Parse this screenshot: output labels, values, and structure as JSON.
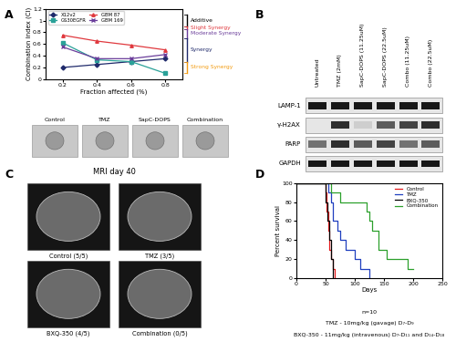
{
  "chart_data": [
    {
      "type": "line",
      "xlabel": "Fraction affected (%)",
      "ylabel": "Combination index (CI)",
      "x": [
        0.2,
        0.4,
        0.6,
        0.8
      ],
      "xlim": [
        0.1,
        0.9
      ],
      "xticks": [
        0.2,
        0.4,
        0.6,
        0.8
      ],
      "ylim": [
        0,
        1.2
      ],
      "yticks": [
        0,
        0.2,
        0.4,
        0.6,
        0.8,
        1,
        1.2
      ],
      "legend": "upper left",
      "series": [
        {
          "name": "X12v2",
          "color": "#1f2a6b",
          "marker": "diamond",
          "values": [
            0.2,
            0.25,
            0.3,
            0.35
          ]
        },
        {
          "name": "GS30EGFR",
          "color": "#2aa198",
          "marker": "square",
          "values": [
            0.62,
            0.33,
            0.3,
            0.1
          ]
        },
        {
          "name": "GBM 87",
          "color": "#e0393e",
          "marker": "triangle",
          "values": [
            0.75,
            0.65,
            0.58,
            0.5
          ]
        },
        {
          "name": "GBM 169",
          "color": "#6a3d9a",
          "marker": "x",
          "values": [
            0.55,
            0.35,
            0.35,
            0.42
          ]
        }
      ],
      "ranges": [
        {
          "label": "Additive",
          "low": 0.9,
          "high": 1.1,
          "color": "#000000"
        },
        {
          "label": "Slight Synergy",
          "low": 0.85,
          "high": 0.9,
          "color": "#e0393e"
        },
        {
          "label": "Moderate Synergy",
          "low": 0.7,
          "high": 0.85,
          "color": "#6a3d9a"
        },
        {
          "label": "Synergy",
          "low": 0.3,
          "high": 0.7,
          "color": "#1f2a6b"
        },
        {
          "label": "Strong Synergy",
          "low": 0.1,
          "high": 0.3,
          "color": "#f39c12"
        }
      ]
    },
    {
      "type": "step",
      "xlabel": "Days",
      "ylabel": "Percent survival",
      "xlim": [
        0,
        250
      ],
      "xticks": [
        0,
        50,
        100,
        150,
        200,
        250
      ],
      "ylim": [
        0,
        100
      ],
      "yticks": [
        0,
        20,
        40,
        60,
        80,
        100
      ],
      "legend": "upper right",
      "series": [
        {
          "name": "Control",
          "color": "#e41a1c",
          "x": [
            0,
            50,
            52,
            55,
            57,
            60,
            62,
            65
          ],
          "values": [
            100,
            90,
            70,
            50,
            30,
            20,
            10,
            0
          ]
        },
        {
          "name": "TMZ",
          "color": "#1f3fbf",
          "x": [
            0,
            55,
            60,
            63,
            70,
            75,
            85,
            100,
            110,
            125
          ],
          "values": [
            100,
            90,
            80,
            60,
            50,
            40,
            30,
            20,
            10,
            0
          ]
        },
        {
          "name": "BXQ-350",
          "color": "#000000",
          "x": [
            0,
            50,
            53,
            57,
            60,
            63
          ],
          "values": [
            100,
            80,
            60,
            40,
            20,
            0
          ]
        },
        {
          "name": "Combination",
          "color": "#2ca02c",
          "x": [
            0,
            60,
            75,
            120,
            125,
            130,
            140,
            155,
            190,
            200
          ],
          "values": [
            100,
            90,
            80,
            70,
            60,
            50,
            30,
            20,
            10,
            10
          ]
        }
      ],
      "annotations": [
        "n=10",
        "TMZ - 10mg/kg (gavage) D₇-D₉",
        "BXQ-350 - 11mg/kg (intravenous) D₇-D₁₁ and D₁₄-D₁₈"
      ]
    }
  ],
  "panel_letters": [
    "A",
    "B",
    "C",
    "D"
  ],
  "micrographs": {
    "labels": [
      "Control",
      "TMZ",
      "SapC-DOPS",
      "Combination"
    ]
  },
  "western_blot": {
    "columns": [
      "Untreated",
      "TMZ (2mM)",
      "SapC-DOPS (11.25uM)",
      "SapC-DOPS (22.5uM)",
      "Combo (11.25uM)",
      "Combo (22.5uM)"
    ],
    "rows": [
      {
        "label": "LAMP-1",
        "bands": [
          0.9,
          0.9,
          0.9,
          0.9,
          0.9,
          0.9
        ]
      },
      {
        "label": "γ-H2AX",
        "bands": [
          0,
          0.8,
          0.1,
          0.6,
          0.7,
          0.8
        ]
      },
      {
        "label": "PARP",
        "bands": [
          0.5,
          0.8,
          0.6,
          0.7,
          0.5,
          0.6
        ]
      },
      {
        "label": "GAPDH",
        "bands": [
          0.9,
          0.9,
          0.9,
          0.9,
          0.9,
          0.9
        ]
      }
    ]
  },
  "mri": {
    "title": "MRI day 40",
    "labels": [
      "Control (5/5)",
      "TMZ (3/5)",
      "BXQ-350 (4/5)",
      "Combination (0/5)"
    ]
  }
}
